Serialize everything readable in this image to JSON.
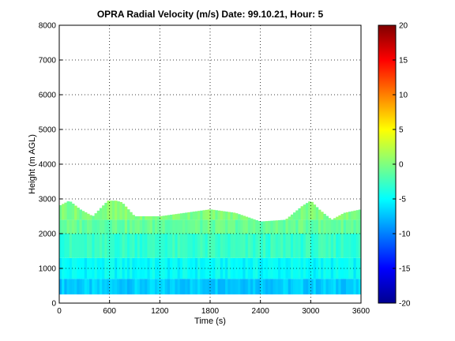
{
  "chart_data": {
    "type": "heatmap",
    "title": "OPRA Radial Velocity (m/s)  Date: 99.10.21, Hour: 5",
    "xlabel": "Time (s)",
    "ylabel": "Height (m AGL)",
    "xlim": [
      0,
      3600
    ],
    "ylim": [
      0,
      8000
    ],
    "xticks": [
      "0",
      "600",
      "1200",
      "1800",
      "2400",
      "3000",
      "3600"
    ],
    "yticks": [
      "0",
      "1000",
      "2000",
      "3000",
      "4000",
      "5000",
      "6000",
      "7000",
      "8000"
    ],
    "grid": true,
    "colorbar": {
      "min": -20,
      "max": 20,
      "colormap": "jet",
      "ticks": [
        "20",
        "15",
        "10",
        "5",
        "0",
        "-5",
        "-10",
        "-15",
        "-20"
      ]
    },
    "bands": [
      {
        "y_from": 250,
        "y_to": 700,
        "velocity": -7
      },
      {
        "y_from": 700,
        "y_to": 1300,
        "velocity": -5
      },
      {
        "y_from": 1300,
        "y_to": 2000,
        "velocity": -3
      },
      {
        "y_from": 2000,
        "y_to": 2400,
        "velocity": -1
      },
      {
        "y_from": 2400,
        "y_to": 2950,
        "velocity": 0
      }
    ],
    "echo_top": [
      [
        0,
        2800
      ],
      [
        120,
        2950
      ],
      [
        250,
        2700
      ],
      [
        400,
        2500
      ],
      [
        600,
        3000
      ],
      [
        750,
        2900
      ],
      [
        900,
        2500
      ],
      [
        1200,
        2500
      ],
      [
        1500,
        2600
      ],
      [
        1800,
        2700
      ],
      [
        2100,
        2600
      ],
      [
        2400,
        2350
      ],
      [
        2700,
        2400
      ],
      [
        2900,
        2800
      ],
      [
        3000,
        2950
      ],
      [
        3100,
        2700
      ],
      [
        3250,
        2400
      ],
      [
        3400,
        2600
      ],
      [
        3600,
        2700
      ]
    ]
  }
}
